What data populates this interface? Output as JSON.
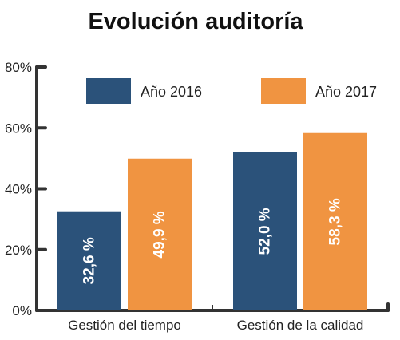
{
  "chart_data": {
    "type": "bar",
    "title": "Evolución auditoría",
    "xlabel": "",
    "ylabel": "",
    "categories": [
      "Gestión del tiempo",
      "Gestión de la calidad"
    ],
    "series": [
      {
        "name": "Año 2016",
        "color": "#2b527a",
        "values": [
          32.6,
          52.0
        ],
        "labels": [
          "32,6 %",
          "52,0 %"
        ]
      },
      {
        "name": "Año 2017",
        "color": "#f09441",
        "values": [
          49.9,
          58.3
        ],
        "labels": [
          "49,9 %",
          "58,3 %"
        ]
      }
    ],
    "ylim": [
      0,
      80
    ],
    "yticks": [
      0,
      20,
      40,
      60,
      80
    ],
    "ytick_labels": [
      "0%",
      "20%",
      "40%",
      "60%",
      "80%"
    ],
    "grid": false,
    "legend": "top",
    "axis_color": "#333333"
  }
}
